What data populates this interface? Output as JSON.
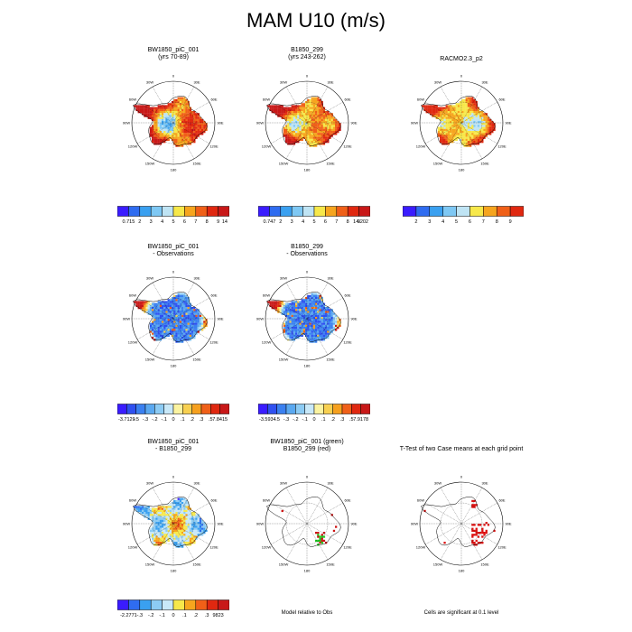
{
  "title": "MAM U10 (m/s)",
  "chart_data": [
    {
      "type": "heatmap",
      "projection": "south-polar-stereographic",
      "title_line1": "BW1850_piC_001",
      "title_line2": "(yrs 70-89)",
      "colorbar_ticks": [
        "0.715",
        "2",
        "3",
        "4",
        "5",
        "6",
        "7",
        "8",
        "9",
        "14"
      ],
      "colors": [
        "#3a1cff",
        "#2f6cf0",
        "#3aa0f0",
        "#7ec8f4",
        "#bfe4f4",
        "#f7e84a",
        "#f6a51e",
        "#f06018",
        "#e02810",
        "#c81818"
      ]
    },
    {
      "type": "heatmap",
      "projection": "south-polar-stereographic",
      "title_line1": "B1850_299",
      "title_line2": "(yrs 243-262)",
      "colorbar_ticks": [
        "0.747",
        "2",
        "3",
        "4",
        "5",
        "6",
        "7",
        "8",
        "9",
        "14.202"
      ],
      "colors": [
        "#3a1cff",
        "#2f6cf0",
        "#3aa0f0",
        "#7ec8f4",
        "#bfe4f4",
        "#f7e84a",
        "#f6a51e",
        "#f06018",
        "#e02810",
        "#c81818"
      ]
    },
    {
      "type": "heatmap",
      "projection": "south-polar-stereographic",
      "title_line1": "RACMO2.3_p2",
      "title_line2": "",
      "colorbar_ticks": [
        "2",
        "3",
        "4",
        "5",
        "6",
        "7",
        "8",
        "9"
      ],
      "colors": [
        "#3a1cff",
        "#2f6cf0",
        "#3aa0f0",
        "#7ec8f4",
        "#bfe4f4",
        "#f7e84a",
        "#f6a51e",
        "#f06018",
        "#e02810"
      ]
    },
    {
      "type": "heatmap",
      "projection": "south-polar-stereographic",
      "title_line1": "BW1850_piC_001",
      "title_line2": "- Observations",
      "colorbar_ticks": [
        "-3.7129",
        "-.5",
        "-.3",
        "-.2",
        "-.1",
        "0",
        ".1",
        ".2",
        ".3",
        ".5",
        "7.8415"
      ],
      "colors": [
        "#3a1cff",
        "#2f50f0",
        "#3a80f0",
        "#5aa8f0",
        "#8ccbf4",
        "#c8e8f8",
        "#fbf3a0",
        "#f8d050",
        "#f6a01e",
        "#f06018",
        "#e02810",
        "#c81818"
      ]
    },
    {
      "type": "heatmap",
      "projection": "south-polar-stereographic",
      "title_line1": "B1850_299",
      "title_line2": "- Observations",
      "colorbar_ticks": [
        "-3.5934",
        "-.5",
        "-.3",
        "-.2",
        "-.1",
        "0",
        ".1",
        ".2",
        ".3",
        ".5",
        "7.9178"
      ],
      "colors": [
        "#3a1cff",
        "#2f50f0",
        "#3a80f0",
        "#5aa8f0",
        "#8ccbf4",
        "#c8e8f8",
        "#fbf3a0",
        "#f8d050",
        "#f6a01e",
        "#f06018",
        "#e02810",
        "#c81818"
      ]
    },
    {
      "type": "heatmap",
      "projection": "south-polar-stereographic",
      "title_line1": "BW1850_piC_001",
      "title_line2": "- B1850_299",
      "colorbar_ticks": [
        "-2.2771",
        "-.3",
        "-.2",
        "-.1",
        "0",
        ".1",
        ".2",
        ".3",
        "9823"
      ],
      "colors": [
        "#3a1cff",
        "#2f6cf0",
        "#3aa0f0",
        "#8ccbf4",
        "#c8e8f8",
        "#f7e84a",
        "#f6a51e",
        "#f06018",
        "#e02810",
        "#c81818"
      ]
    },
    {
      "type": "heatmap",
      "projection": "south-polar-stereographic",
      "title_line1": "BW1850_piC_001 (green)",
      "title_line2": "B1850_299 (red)",
      "footnote": "Model relative to Obs",
      "series": [
        {
          "name": "BW1850_piC_001 (green)",
          "color": "#22cc22"
        },
        {
          "name": "B1850_299 (red)",
          "color": "#cc1111"
        }
      ]
    },
    {
      "type": "heatmap",
      "projection": "south-polar-stereographic",
      "title_line1": "T-Test of two Case means at each grid point",
      "title_line2": "",
      "footnote": "Cells are significant at 0.1 level",
      "series": [
        {
          "name": "significant",
          "color": "#dd1111"
        }
      ]
    }
  ],
  "longitude_labels": [
    "0",
    "30E",
    "60E",
    "90E",
    "120E",
    "150E",
    "180",
    "150W",
    "120W",
    "90W",
    "60W",
    "30W"
  ]
}
